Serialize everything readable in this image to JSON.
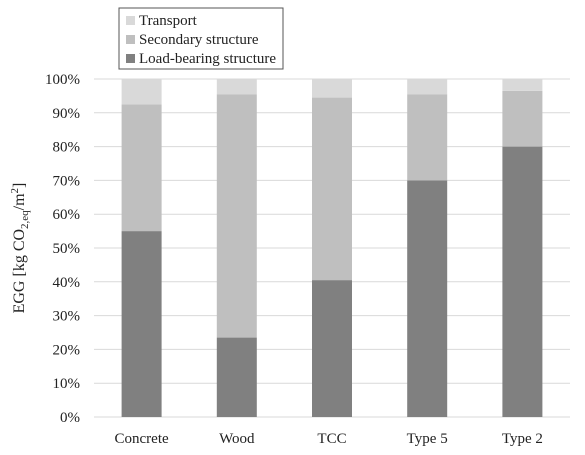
{
  "chart_data": {
    "type": "bar",
    "stacked": true,
    "percent_stacked": true,
    "categories": [
      "Concrete",
      "Wood",
      "TCC",
      "Type 5",
      "Type 2"
    ],
    "series": [
      {
        "name": "Load-bearing structure",
        "color": "#808080",
        "values": [
          55,
          23.5,
          40.5,
          70,
          80
        ]
      },
      {
        "name": "Secondary structure",
        "color": "#bfbfbf",
        "values": [
          37.5,
          72,
          54,
          25.5,
          16.5
        ]
      },
      {
        "name": "Transport",
        "color": "#d9d9d9",
        "values": [
          7.5,
          4.5,
          5.5,
          4.5,
          3.5
        ]
      }
    ],
    "ylabel_parts": [
      "EGG [kg CO",
      "2,eq",
      "/m",
      "2",
      "]"
    ],
    "ylim": [
      0,
      100
    ],
    "yticks": [
      0,
      10,
      20,
      30,
      40,
      50,
      60,
      70,
      80,
      90,
      100
    ],
    "ytick_labels": [
      "0%",
      "10%",
      "20%",
      "30%",
      "40%",
      "50%",
      "60%",
      "70%",
      "80%",
      "90%",
      "100%"
    ],
    "legend_placement": "top-left",
    "legend_order": [
      "Transport",
      "Secondary structure",
      "Load-bearing structure"
    ],
    "grid": true
  }
}
